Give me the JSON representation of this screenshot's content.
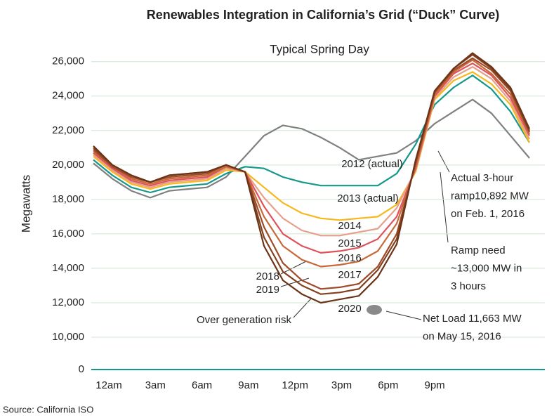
{
  "chart_data": {
    "type": "line",
    "title": "Renewables Integration in California’s Grid (“Duck” Curve)",
    "subtitle": "Typical Spring Day",
    "y_label": "Megawatts",
    "source": "Source: California ISO",
    "xtick_labels": [
      "12am",
      "3am",
      "6am",
      "9am",
      "12pm",
      "3pm",
      "6pm",
      "9pm"
    ],
    "ylim": [
      0,
      26600
    ],
    "y_break": [
      0,
      10000
    ],
    "yticks": [
      0,
      {
        "value": 10000,
        "label": "10,000"
      },
      {
        "value": 12000,
        "label": "12,000"
      },
      {
        "value": 14000,
        "label": "14,000"
      },
      {
        "value": 16000,
        "label": "16,000"
      },
      {
        "value": 18000,
        "label": "18,000"
      },
      {
        "value": 20000,
        "label": "20,000"
      },
      {
        "value": 22000,
        "label": "22,000"
      },
      {
        "value": 24000,
        "label": "24,000"
      },
      {
        "value": 26000,
        "label": "26,000"
      }
    ],
    "grid": true,
    "series": [
      {
        "name": "2012 (actual)",
        "color": "#808080",
        "values": [
          20100,
          19200,
          18500,
          18100,
          18500,
          18600,
          18700,
          19300,
          20500,
          21700,
          22300,
          22100,
          21600,
          21000,
          20300,
          20500,
          20700,
          21400,
          22400,
          23100,
          23800,
          23000,
          21700,
          20400
        ]
      },
      {
        "name": "2013 (actual)",
        "color": "#13988a",
        "values": [
          20300,
          19400,
          18700,
          18400,
          18700,
          18800,
          18900,
          19500,
          19900,
          19800,
          19300,
          19000,
          18800,
          18800,
          18800,
          18800,
          19500,
          21200,
          23500,
          24500,
          25200,
          24400,
          23100,
          21300
        ]
      },
      {
        "name": "2014",
        "color": "#f6b81c",
        "values": [
          20500,
          19600,
          18900,
          18600,
          18900,
          19000,
          19100,
          19700,
          19600,
          18700,
          17800,
          17200,
          16900,
          16800,
          16900,
          17000,
          17700,
          19600,
          23800,
          24900,
          25400,
          24700,
          23500,
          21300
        ]
      },
      {
        "name": "2015",
        "color": "#e6a08a",
        "values": [
          20600,
          19700,
          19000,
          18700,
          19000,
          19100,
          19200,
          19800,
          19600,
          18100,
          16900,
          16200,
          15900,
          15900,
          16100,
          16300,
          17500,
          19700,
          23900,
          25100,
          25700,
          25000,
          23700,
          21500
        ]
      },
      {
        "name": "2016",
        "color": "#e0525a",
        "values": [
          20700,
          19800,
          19100,
          18800,
          19100,
          19200,
          19300,
          19900,
          19600,
          17600,
          16000,
          15300,
          14900,
          15000,
          15200,
          15700,
          17000,
          19800,
          24000,
          25300,
          25900,
          25200,
          23900,
          21700
        ]
      },
      {
        "name": "2017",
        "color": "#c8693a",
        "values": [
          20800,
          19900,
          19200,
          18900,
          19200,
          19300,
          19400,
          19900,
          19600,
          17000,
          15300,
          14500,
          14100,
          14200,
          14400,
          15000,
          16600,
          19900,
          24100,
          25400,
          26100,
          25300,
          24100,
          21800
        ]
      },
      {
        "name": "2018",
        "color": "#9c4a28",
        "values": [
          20900,
          19900,
          19300,
          19000,
          19300,
          19400,
          19500,
          20000,
          19600,
          16400,
          14300,
          13300,
          12800,
          12900,
          13100,
          14100,
          16000,
          20100,
          24200,
          25500,
          26200,
          25500,
          24300,
          21900
        ]
      },
      {
        "name": "2019",
        "color": "#83401f",
        "values": [
          21000,
          20000,
          19400,
          19000,
          19400,
          19500,
          19600,
          20000,
          19600,
          15800,
          13800,
          13000,
          12500,
          12600,
          12800,
          13900,
          15700,
          20200,
          24300,
          25600,
          26400,
          25600,
          24400,
          22000
        ]
      },
      {
        "name": "2020",
        "color": "#6b3418",
        "values": [
          21100,
          20000,
          19400,
          19000,
          19400,
          19500,
          19600,
          20000,
          19600,
          15300,
          13300,
          12500,
          12000,
          12200,
          12400,
          13500,
          15400,
          20300,
          24300,
          25600,
          26500,
          25700,
          24500,
          22100
        ]
      }
    ],
    "annotations": [
      {
        "lines": [
          "Actual 3-hour",
          "ramp10,892 MW",
          "on Feb. 1, 2016"
        ]
      },
      {
        "lines": [
          "Ramp need",
          "~13,000 MW in",
          "3 hours"
        ]
      },
      {
        "lines": [
          "Net Load 11,663 MW",
          "on May 15, 2016"
        ]
      },
      {
        "lines": [
          "Over generation risk"
        ]
      }
    ]
  }
}
